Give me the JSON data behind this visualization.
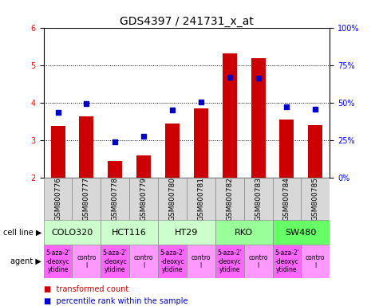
{
  "title": "GDS4397 / 241731_x_at",
  "samples": [
    "GSM800776",
    "GSM800777",
    "GSM800778",
    "GSM800779",
    "GSM800780",
    "GSM800781",
    "GSM800782",
    "GSM800783",
    "GSM800784",
    "GSM800785"
  ],
  "red_values": [
    3.38,
    3.63,
    2.45,
    2.58,
    3.43,
    3.85,
    5.3,
    5.18,
    3.55,
    3.4
  ],
  "blue_values": [
    3.73,
    3.97,
    2.95,
    3.1,
    3.8,
    4.02,
    4.68,
    4.65,
    3.88,
    3.83
  ],
  "ylim": [
    2.0,
    6.0
  ],
  "y2lim": [
    0,
    100
  ],
  "yticks": [
    2,
    3,
    4,
    5,
    6
  ],
  "y2ticks": [
    0,
    25,
    50,
    75,
    100
  ],
  "y2tick_labels": [
    "0%",
    "25%",
    "50%",
    "75%",
    "100%"
  ],
  "cell_lines": [
    {
      "label": "COLO320",
      "start": 0,
      "end": 2,
      "color": "#ccffcc"
    },
    {
      "label": "HCT116",
      "start": 2,
      "end": 4,
      "color": "#ccffcc"
    },
    {
      "label": "HT29",
      "start": 4,
      "end": 6,
      "color": "#ccffcc"
    },
    {
      "label": "RKO",
      "start": 6,
      "end": 8,
      "color": "#99ff99"
    },
    {
      "label": "SW480",
      "start": 8,
      "end": 10,
      "color": "#66ff66"
    }
  ],
  "agents": [
    {
      "label": "5-aza-2'\n-deoxyc\nytidine",
      "start": 0,
      "end": 1,
      "color": "#ff66ff"
    },
    {
      "label": "contro\nl",
      "start": 1,
      "end": 2,
      "color": "#ff99ff"
    },
    {
      "label": "5-aza-2'\n-deoxyc\nytidine",
      "start": 2,
      "end": 3,
      "color": "#ff66ff"
    },
    {
      "label": "contro\nl",
      "start": 3,
      "end": 4,
      "color": "#ff99ff"
    },
    {
      "label": "5-aza-2'\n-deoxyc\nytidine",
      "start": 4,
      "end": 5,
      "color": "#ff66ff"
    },
    {
      "label": "contro\nl",
      "start": 5,
      "end": 6,
      "color": "#ff99ff"
    },
    {
      "label": "5-aza-2'\n-deoxyc\nytidine",
      "start": 6,
      "end": 7,
      "color": "#ff66ff"
    },
    {
      "label": "contro\nl",
      "start": 7,
      "end": 8,
      "color": "#ff99ff"
    },
    {
      "label": "5-aza-2'\n-deoxyc\nytidine",
      "start": 8,
      "end": 9,
      "color": "#ff66ff"
    },
    {
      "label": "contro\nl",
      "start": 9,
      "end": 10,
      "color": "#ff99ff"
    }
  ],
  "bar_color": "#cc0000",
  "dot_color": "#0000cc",
  "bar_width": 0.5,
  "dot_size": 25,
  "title_fontsize": 10,
  "tick_fontsize": 7,
  "label_fontsize": 7,
  "sample_label_fontsize": 6.5,
  "cell_line_fontsize": 8,
  "agent_fontsize": 5.5
}
